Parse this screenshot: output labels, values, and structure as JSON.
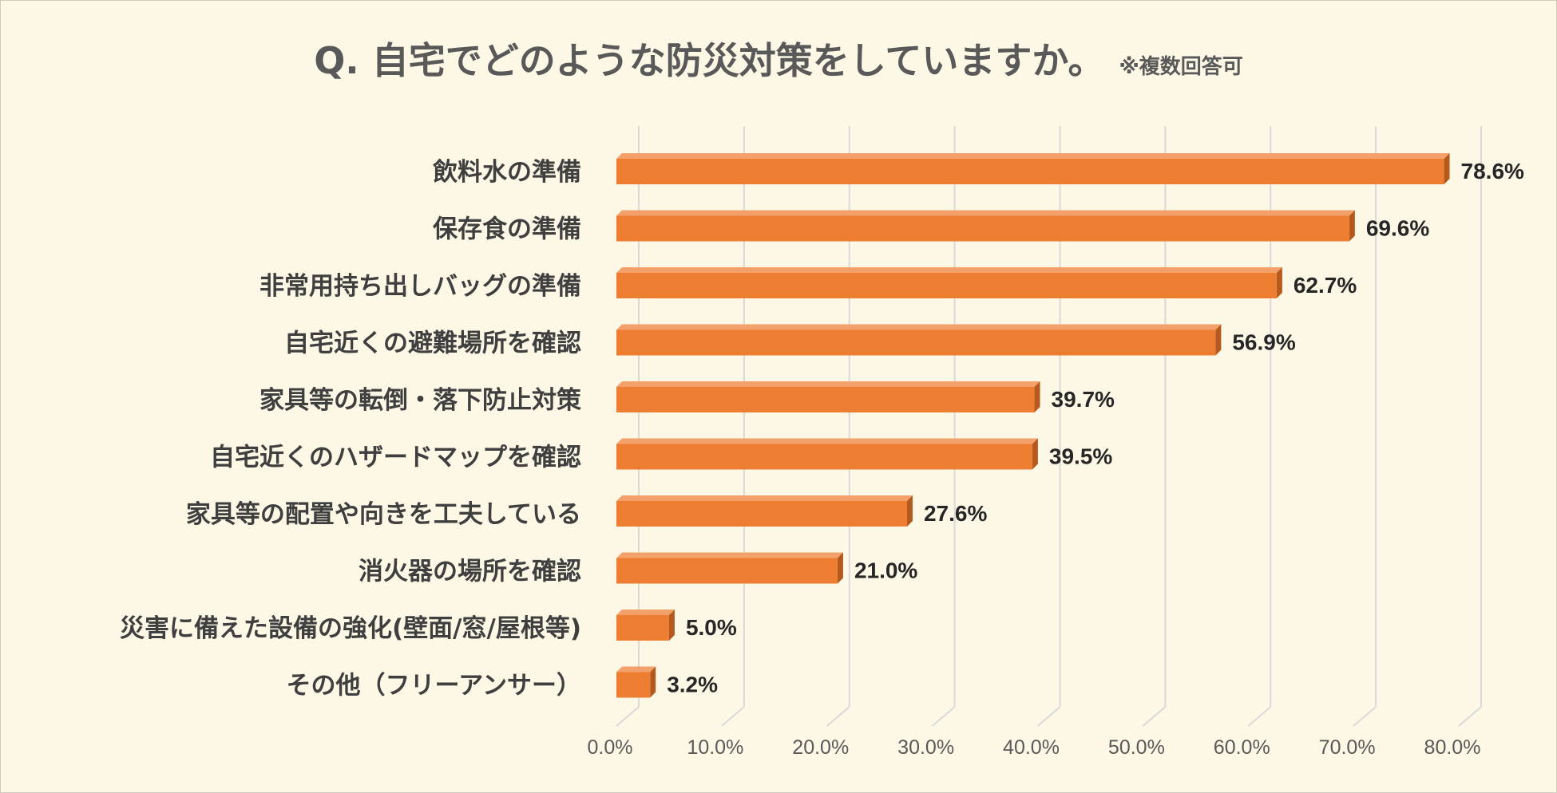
{
  "chart_data": {
    "type": "bar",
    "orientation": "horizontal",
    "title": "Q. 自宅でどのような防災対策をしていますか。",
    "subtitle": "※複数回答可",
    "categories": [
      "飲料水の準備",
      "保存食の準備",
      "非常用持ち出しバッグの準備",
      "自宅近くの避難場所を確認",
      "家具等の転倒・落下防止対策",
      "自宅近くのハザードマップを確認",
      "家具等の配置や向きを工夫している",
      "消火器の場所を確認",
      "災害に備えた設備の強化(壁面/窓/屋根等)",
      "その他（フリーアンサー）"
    ],
    "values": [
      78.6,
      69.6,
      62.7,
      56.9,
      39.7,
      39.5,
      27.6,
      21.0,
      5.0,
      3.2
    ],
    "value_labels": [
      "78.6%",
      "69.6%",
      "62.7%",
      "56.9%",
      "39.7%",
      "39.5%",
      "27.6%",
      "21.0%",
      "5.0%",
      "3.2%"
    ],
    "xlim": [
      0,
      80
    ],
    "xticks": [
      0,
      10,
      20,
      30,
      40,
      50,
      60,
      70,
      80
    ],
    "xtick_labels": [
      "0.0%",
      "10.0%",
      "20.0%",
      "30.0%",
      "40.0%",
      "50.0%",
      "60.0%",
      "70.0%",
      "80.0%"
    ],
    "grid": true,
    "legend": "none",
    "bar_color": "#ed7d31",
    "bar_top_color": "#f4a06a",
    "bar_side_color": "#b45a1e",
    "gridline_color": "#d9d9d9",
    "background_color": "#fdf8e6"
  }
}
